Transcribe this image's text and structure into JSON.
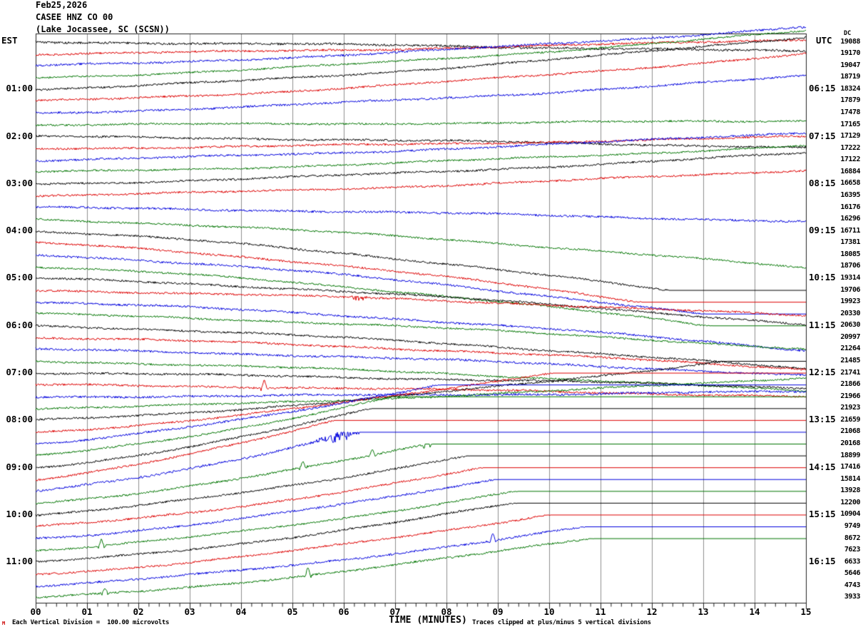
{
  "title": {
    "date": "Feb25,2026",
    "station": "CASEE HNZ CO 00",
    "location": "(Lake Jocassee, SC (SCSN))"
  },
  "axes": {
    "left_header": "EST",
    "right_header": "UTC",
    "dc_header": "DC",
    "x_title": "TIME (MINUTES)",
    "minute_labels": [
      "00",
      "01",
      "02",
      "03",
      "04",
      "05",
      "06",
      "07",
      "08",
      "09",
      "10",
      "11",
      "12",
      "13",
      "14",
      "15"
    ],
    "left_times": [
      {
        "row": 5,
        "label": "01:00"
      },
      {
        "row": 9,
        "label": "02:00"
      },
      {
        "row": 13,
        "label": "03:00"
      },
      {
        "row": 17,
        "label": "04:00"
      },
      {
        "row": 21,
        "label": "05:00"
      },
      {
        "row": 25,
        "label": "06:00"
      },
      {
        "row": 29,
        "label": "07:00"
      },
      {
        "row": 33,
        "label": "08:00"
      },
      {
        "row": 37,
        "label": "09:00"
      },
      {
        "row": 41,
        "label": "10:00"
      },
      {
        "row": 45,
        "label": "11:00"
      }
    ],
    "right_times": [
      {
        "row": 5,
        "label": "06:15"
      },
      {
        "row": 9,
        "label": "07:15"
      },
      {
        "row": 13,
        "label": "08:15"
      },
      {
        "row": 17,
        "label": "09:15"
      },
      {
        "row": 21,
        "label": "10:15"
      },
      {
        "row": 25,
        "label": "11:15"
      },
      {
        "row": 29,
        "label": "12:15"
      },
      {
        "row": 33,
        "label": "13:15"
      },
      {
        "row": 37,
        "label": "14:15"
      },
      {
        "row": 41,
        "label": "15:15"
      },
      {
        "row": 45,
        "label": "16:15"
      }
    ]
  },
  "footer": {
    "mark": "M",
    "scale_note": "Each Vertical Division =  100.00 microvolts",
    "clip_note": "Traces clipped at plus/minus 5 vertical divisions"
  },
  "chart_data": {
    "type": "line",
    "description": "Helicorder: 48 traces of 15 minutes each, drift set by DC level change, clipped at plus/minus 5 divisions",
    "x_range_minutes": [
      0,
      15
    ],
    "minutes_per_row": 15,
    "clip_divisions": 5,
    "microvolts_per_division": 100,
    "colors": {
      "black": "#000000",
      "red": "#dd0000",
      "blue": "#0000dd",
      "green": "#007500",
      "grid": "#8f8f8f",
      "frame": "#222222"
    },
    "rows": [
      {
        "dc": 19088,
        "color": "black",
        "noise": 1.6,
        "events": []
      },
      {
        "dc": 19170,
        "color": "red",
        "noise": 1.4,
        "events": []
      },
      {
        "dc": 19047,
        "color": "blue",
        "noise": 1.5,
        "events": []
      },
      {
        "dc": 18719,
        "color": "green",
        "noise": 1.3,
        "events": []
      },
      {
        "dc": 18324,
        "color": "black",
        "noise": 1.4,
        "events": []
      },
      {
        "dc": 17879,
        "color": "red",
        "noise": 1.4,
        "events": []
      },
      {
        "dc": 17478,
        "color": "blue",
        "noise": 1.5,
        "events": []
      },
      {
        "dc": 17165,
        "color": "green",
        "noise": 1.3,
        "events": []
      },
      {
        "dc": 17129,
        "color": "black",
        "noise": 1.4,
        "events": []
      },
      {
        "dc": 17222,
        "color": "red",
        "noise": 1.4,
        "events": []
      },
      {
        "dc": 17122,
        "color": "blue",
        "noise": 1.5,
        "events": []
      },
      {
        "dc": 16884,
        "color": "green",
        "noise": 1.3,
        "events": []
      },
      {
        "dc": 16658,
        "color": "black",
        "noise": 1.4,
        "events": []
      },
      {
        "dc": 16395,
        "color": "red",
        "noise": 1.4,
        "events": []
      },
      {
        "dc": 16176,
        "color": "blue",
        "noise": 1.5,
        "events": []
      },
      {
        "dc": 16296,
        "color": "green",
        "noise": 1.3,
        "events": []
      },
      {
        "dc": 16711,
        "color": "black",
        "noise": 1.4,
        "events": []
      },
      {
        "dc": 17381,
        "color": "red",
        "noise": 1.4,
        "events": []
      },
      {
        "dc": 18085,
        "color": "blue",
        "noise": 1.5,
        "events": []
      },
      {
        "dc": 18706,
        "color": "green",
        "noise": 1.3,
        "events": []
      },
      {
        "dc": 19314,
        "color": "black",
        "noise": 1.4,
        "events": []
      },
      {
        "dc": 19706,
        "color": "red",
        "noise": 1.4,
        "events": [
          {
            "type": "burst",
            "t0": 6.05,
            "t1": 6.5,
            "amp": 3.5
          }
        ]
      },
      {
        "dc": 19923,
        "color": "blue",
        "noise": 1.5,
        "events": []
      },
      {
        "dc": 20330,
        "color": "green",
        "noise": 1.3,
        "events": []
      },
      {
        "dc": 20630,
        "color": "black",
        "noise": 1.4,
        "events": []
      },
      {
        "dc": 20997,
        "color": "red",
        "noise": 1.4,
        "events": []
      },
      {
        "dc": 21264,
        "color": "blue",
        "noise": 1.5,
        "events": []
      },
      {
        "dc": 21485,
        "color": "green",
        "noise": 1.3,
        "events": []
      },
      {
        "dc": 21741,
        "color": "black",
        "noise": 1.4,
        "events": []
      },
      {
        "dc": 21866,
        "color": "red",
        "noise": 1.4,
        "events": [
          {
            "type": "spike",
            "t": 4.45,
            "amp": 13
          }
        ]
      },
      {
        "dc": 21966,
        "color": "blue",
        "noise": 1.5,
        "events": []
      },
      {
        "dc": 21923,
        "color": "green",
        "noise": 1.3,
        "events": []
      },
      {
        "dc": 21659,
        "color": "black",
        "noise": 1.4,
        "events": []
      },
      {
        "dc": 21068,
        "color": "red",
        "noise": 1.4,
        "events": []
      },
      {
        "dc": 20168,
        "color": "blue",
        "noise": 1.5,
        "events": []
      },
      {
        "dc": 18899,
        "color": "green",
        "noise": 1.3,
        "events": []
      },
      {
        "dc": 17416,
        "color": "black",
        "noise": 1.4,
        "events": []
      },
      {
        "dc": 15814,
        "color": "red",
        "noise": 1.4,
        "events": []
      },
      {
        "dc": 13928,
        "color": "blue",
        "noise": 1.6,
        "events": [
          {
            "type": "burst",
            "t0": 5.35,
            "t1": 6.45,
            "amp": 7.5
          }
        ]
      },
      {
        "dc": 12200,
        "color": "green",
        "noise": 1.4,
        "events": [
          {
            "type": "spike",
            "t": 5.2,
            "amp": 9
          },
          {
            "type": "spike",
            "t": 6.55,
            "amp": 9
          },
          {
            "type": "spike",
            "t": 7.62,
            "amp": 20
          }
        ]
      },
      {
        "dc": 10904,
        "color": "black",
        "noise": 1.4,
        "events": []
      },
      {
        "dc": 9749,
        "color": "red",
        "noise": 1.4,
        "events": []
      },
      {
        "dc": 8672,
        "color": "blue",
        "noise": 1.5,
        "events": []
      },
      {
        "dc": 7623,
        "color": "green",
        "noise": 1.3,
        "events": [
          {
            "type": "spike",
            "t": 1.28,
            "amp": 9
          }
        ]
      },
      {
        "dc": 6633,
        "color": "black",
        "noise": 1.4,
        "events": []
      },
      {
        "dc": 5646,
        "color": "red",
        "noise": 1.4,
        "events": []
      },
      {
        "dc": 4743,
        "color": "blue",
        "noise": 1.5,
        "events": [
          {
            "type": "spike",
            "t": 8.9,
            "amp": 11
          }
        ]
      },
      {
        "dc": 3933,
        "color": "green",
        "noise": 1.4,
        "events": [
          {
            "type": "spike",
            "t": 1.35,
            "amp": 8
          },
          {
            "type": "spike",
            "t": 5.3,
            "amp": 11
          }
        ]
      }
    ]
  }
}
